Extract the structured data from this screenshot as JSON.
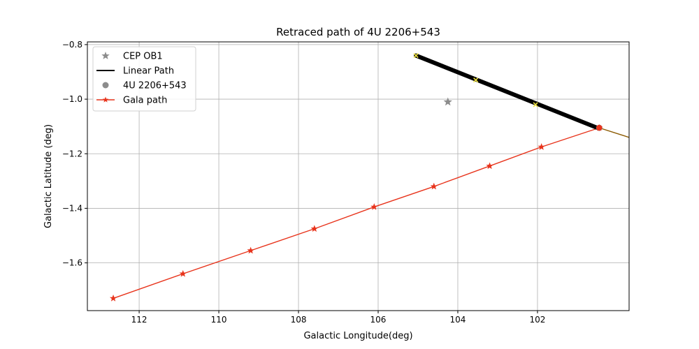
{
  "chart_data": {
    "type": "line",
    "title": "Retraced path of 4U 2206+543",
    "xlabel": "Galactic Longitude(deg)",
    "ylabel": "Galactic Latitude (deg)",
    "xlim": [
      113.3,
      99.7
    ],
    "ylim": [
      -1.775,
      -0.79
    ],
    "x_inverted": true,
    "grid": true,
    "x_ticks": [
      112,
      110,
      108,
      106,
      104,
      102
    ],
    "x_tick_labels": [
      "112",
      "110",
      "108",
      "106",
      "104",
      "102"
    ],
    "y_ticks": [
      -0.8,
      -1.0,
      -1.2,
      -1.4,
      -1.6
    ],
    "y_tick_labels": [
      "−0.8",
      "−1.0",
      "−1.2",
      "−1.4",
      "−1.6"
    ],
    "legend_position": "upper-left",
    "legend": [
      {
        "label": "CEP OB1",
        "marker": "star",
        "color": "#8c8c8c"
      },
      {
        "label": "Linear Path",
        "marker": "line",
        "color": "#000000"
      },
      {
        "label": "4U 2206+543",
        "marker": "circle",
        "color": "#8c8c8c"
      },
      {
        "label": "Gala path",
        "marker": "star-line",
        "color": "#e8341c"
      }
    ],
    "series": [
      {
        "name": "CEP OB1",
        "type": "scatter",
        "color": "#8c8c8c",
        "points": [
          {
            "x": 104.25,
            "y": -1.01
          }
        ]
      },
      {
        "name": "Linear Path",
        "type": "line",
        "color": "#000000",
        "points": [
          {
            "x": 105.05,
            "y": -0.84
          },
          {
            "x": 100.5,
            "y": -1.105
          }
        ],
        "markers": [
          {
            "x": 105.05,
            "y": -0.84
          },
          {
            "x": 103.55,
            "y": -0.93
          },
          {
            "x": 102.05,
            "y": -1.02
          }
        ],
        "marker_color": "#f0e442"
      },
      {
        "name": "4U 2206+543",
        "type": "scatter",
        "color": "#8c8c8c",
        "points": [
          {
            "x": 100.45,
            "y": -1.105
          }
        ]
      },
      {
        "name": "Gala path",
        "type": "line",
        "color": "#e8341c",
        "points": [
          {
            "x": 100.45,
            "y": -1.105
          },
          {
            "x": 101.9,
            "y": -1.175
          },
          {
            "x": 103.2,
            "y": -1.245
          },
          {
            "x": 104.6,
            "y": -1.32
          },
          {
            "x": 106.1,
            "y": -1.395
          },
          {
            "x": 107.6,
            "y": -1.475
          },
          {
            "x": 109.2,
            "y": -1.555
          },
          {
            "x": 110.9,
            "y": -1.64
          },
          {
            "x": 112.65,
            "y": -1.73
          }
        ]
      },
      {
        "type": "line",
        "color": "#8b5a00",
        "points": [
          {
            "x": 100.45,
            "y": -1.105
          },
          {
            "x": 99.7,
            "y": -1.14
          }
        ]
      }
    ]
  }
}
